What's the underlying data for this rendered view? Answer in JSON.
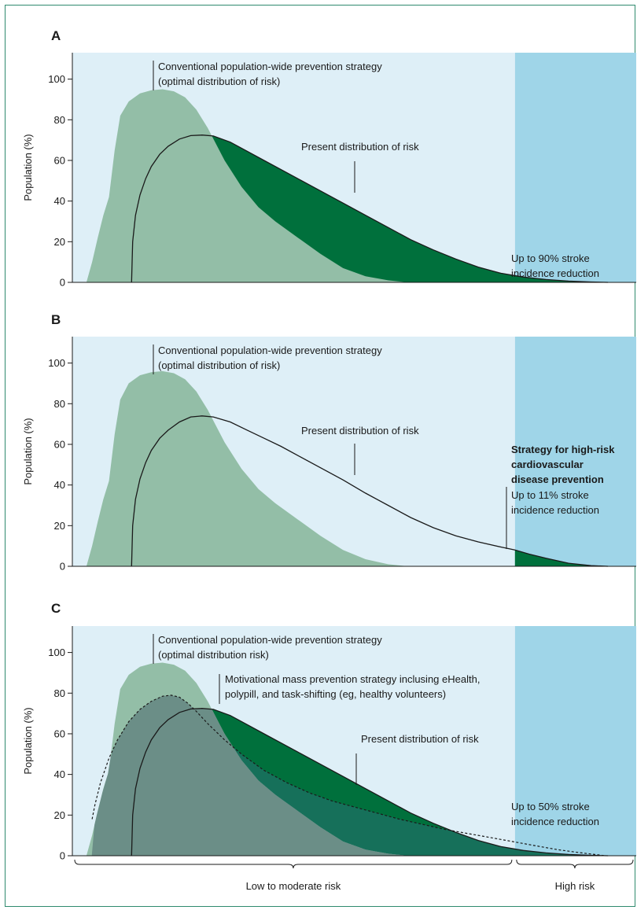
{
  "colors": {
    "low_region": "#deeff7",
    "high_region": "#9fd5e8",
    "optimal_fill": "#93bea7",
    "present_fill": "#00703c",
    "motivational_fill": "#6b8e87",
    "overlap_fill": "#16705a",
    "line": "#1a1a1a"
  },
  "chart_data": [
    {
      "type": "area",
      "panel": "A",
      "ylabel": "Population (%)",
      "ylim": [
        0,
        113
      ],
      "xlim": [
        0,
        100
      ],
      "yticks": [
        "0",
        "20",
        "40",
        "60",
        "80",
        "100"
      ],
      "high_risk_start": 78.5,
      "series": [
        {
          "name": "Conventional population-wide prevention strategy (optimal distribution of risk)",
          "role": "optimal",
          "x": [
            2.5,
            3.5,
            4.5,
            5.5,
            6.5,
            7.5,
            8.5,
            10,
            12,
            14,
            16,
            18,
            20,
            22,
            24,
            27,
            30,
            33,
            36,
            40,
            44,
            48,
            52,
            56,
            59.5
          ],
          "y": [
            0,
            10,
            22,
            33,
            42,
            65,
            82,
            89,
            93,
            94.5,
            95,
            94,
            91,
            85,
            76,
            60,
            47,
            37,
            30,
            22,
            14,
            7,
            3,
            1,
            0
          ]
        },
        {
          "name": "Present distribution of risk",
          "role": "present",
          "x": [
            10.5,
            10.7,
            11.2,
            12,
            13,
            14,
            15.5,
            17,
            19,
            21,
            23,
            25,
            28,
            31,
            34,
            37,
            40,
            44,
            48,
            52,
            56,
            60,
            64,
            68,
            72,
            76,
            80,
            84,
            88,
            92,
            95
          ],
          "y": [
            0,
            20,
            33,
            43,
            51,
            57,
            63,
            67,
            70.5,
            72.2,
            72.5,
            72,
            69,
            64.5,
            60,
            55.5,
            51,
            45,
            39,
            33,
            27,
            21,
            16,
            11.5,
            7.5,
            4.5,
            2.6,
            1.4,
            0.6,
            0.2,
            0
          ]
        }
      ],
      "annotations": [
        {
          "lines": [
            "Conventional population-wide prevention strategy",
            "(optimal distribution of risk)"
          ],
          "weight": "normal"
        },
        {
          "lines": [
            "Present distribution of risk"
          ],
          "weight": "normal"
        },
        {
          "lines": [
            "Up to 90% stroke",
            "incidence  reduction"
          ],
          "weight": "normal"
        }
      ]
    },
    {
      "type": "area",
      "panel": "B",
      "ylabel": "Population (%)",
      "ylim": [
        0,
        113
      ],
      "xlim": [
        0,
        100
      ],
      "yticks": [
        "0",
        "20",
        "40",
        "60",
        "80",
        "100"
      ],
      "high_risk_start": 78.5,
      "series": [
        {
          "name": "Conventional population-wide prevention strategy (optimal distribution of risk)",
          "role": "optimal",
          "x": [
            2.5,
            3.5,
            4.5,
            5.5,
            6.5,
            7.5,
            8.5,
            10,
            12,
            14,
            16,
            18,
            20,
            22,
            24,
            27,
            30,
            33,
            36,
            40,
            44,
            48,
            52,
            56,
            59.5
          ],
          "y": [
            0,
            10,
            22,
            33,
            42,
            65,
            82,
            90,
            94,
            95.5,
            96,
            95,
            92,
            86,
            77,
            61,
            48,
            38,
            31,
            23,
            15,
            8,
            3.5,
            1,
            0
          ]
        },
        {
          "name": "Present distribution of risk",
          "role": "present",
          "x": [
            10.5,
            10.7,
            11.2,
            12,
            13,
            14,
            15.5,
            17,
            19,
            21,
            23,
            25,
            28,
            31,
            34,
            37,
            40,
            44,
            48,
            52,
            56,
            60,
            64,
            68,
            72,
            76,
            78.5,
            81,
            84,
            88,
            92,
            95
          ],
          "y": [
            0,
            20,
            33,
            43,
            51,
            57,
            63,
            67,
            71,
            73.5,
            74,
            73.5,
            71,
            67,
            63,
            59,
            54.5,
            48.5,
            42.5,
            36,
            30,
            24,
            19,
            15,
            12,
            9.5,
            8,
            6,
            4,
            1.5,
            0.3,
            0
          ]
        }
      ],
      "annotations": [
        {
          "lines": [
            "Conventional population-wide prevention strategy",
            "(optimal distribution of risk)"
          ],
          "weight": "normal"
        },
        {
          "lines": [
            "Present distribution of risk"
          ],
          "weight": "normal"
        },
        {
          "lines": [
            "Strategy for high-risk",
            "cardiovascular",
            "disease prevention"
          ],
          "weight": "bold"
        },
        {
          "lines": [
            "Up to 11% stroke",
            "incidence reduction"
          ],
          "weight": "normal"
        }
      ]
    },
    {
      "type": "area",
      "panel": "C",
      "ylabel": "Population (%)",
      "ylim": [
        0,
        113
      ],
      "xlim": [
        0,
        100
      ],
      "yticks": [
        "0",
        "20",
        "40",
        "60",
        "80",
        "100"
      ],
      "high_risk_start": 78.5,
      "series": [
        {
          "name": "Conventional population-wide prevention strategy (optimal distribution risk)",
          "role": "optimal",
          "x": [
            2.5,
            3.5,
            4.5,
            5.5,
            6.5,
            7.5,
            8.5,
            10,
            12,
            14,
            16,
            18,
            20,
            22,
            24,
            27,
            30,
            33,
            36,
            40,
            44,
            48,
            52,
            56,
            59.5
          ],
          "y": [
            0,
            10,
            22,
            33,
            42,
            65,
            82,
            89,
            93,
            94.5,
            95,
            94,
            91,
            85,
            76,
            60,
            47,
            37,
            30,
            22,
            14,
            7,
            3,
            1,
            0
          ]
        },
        {
          "name": "Present distribution of risk",
          "role": "present",
          "x": [
            10.5,
            10.7,
            11.2,
            12,
            13,
            14,
            15.5,
            17,
            19,
            21,
            23,
            25,
            28,
            31,
            34,
            37,
            40,
            44,
            48,
            52,
            56,
            60,
            64,
            68,
            72,
            76,
            80,
            84,
            88,
            92,
            95
          ],
          "y": [
            0,
            20,
            33,
            43,
            51,
            57,
            63,
            67,
            70.5,
            72.2,
            72.5,
            72,
            69,
            64.5,
            60,
            55.5,
            51,
            45,
            39,
            33,
            27,
            21,
            16,
            11.5,
            7.5,
            4.5,
            2.6,
            1.4,
            0.6,
            0.2,
            0
          ]
        },
        {
          "name": "Motivational mass prevention strategy inclusing eHealth, polypill, and task-shifting (eg, healthy volunteers)",
          "role": "motivational",
          "x": [
            3.5,
            4,
            5,
            6.5,
            8,
            10,
            12,
            14,
            16,
            17.5,
            19,
            20.5,
            22,
            24,
            27,
            30,
            34,
            38,
            42,
            46,
            50,
            54,
            58,
            62,
            66,
            70,
            74,
            78,
            82,
            86,
            90,
            94.5
          ],
          "y": [
            18,
            25,
            36,
            48,
            57,
            66,
            72,
            76,
            78.5,
            79,
            78,
            75,
            71,
            65,
            57,
            50,
            42,
            36,
            31,
            27,
            24,
            21,
            18,
            15.5,
            13,
            11,
            9,
            7,
            5,
            3,
            1.5,
            0
          ]
        }
      ],
      "annotations": [
        {
          "lines": [
            "Conventional population-wide prevention strategy",
            "(optimal distribution risk)"
          ],
          "weight": "normal"
        },
        {
          "lines": [
            "Motivational mass prevention strategy inclusing eHealth,",
            "polypill, and task-shifting (eg, healthy volunteers)"
          ],
          "weight": "normal"
        },
        {
          "lines": [
            "Present distribution of risk"
          ],
          "weight": "normal"
        },
        {
          "lines": [
            "Up to 50% stroke",
            "incidence reduction"
          ],
          "weight": "normal"
        }
      ]
    }
  ],
  "x_regions": {
    "low": "Low to moderate risk",
    "high": "High risk"
  }
}
